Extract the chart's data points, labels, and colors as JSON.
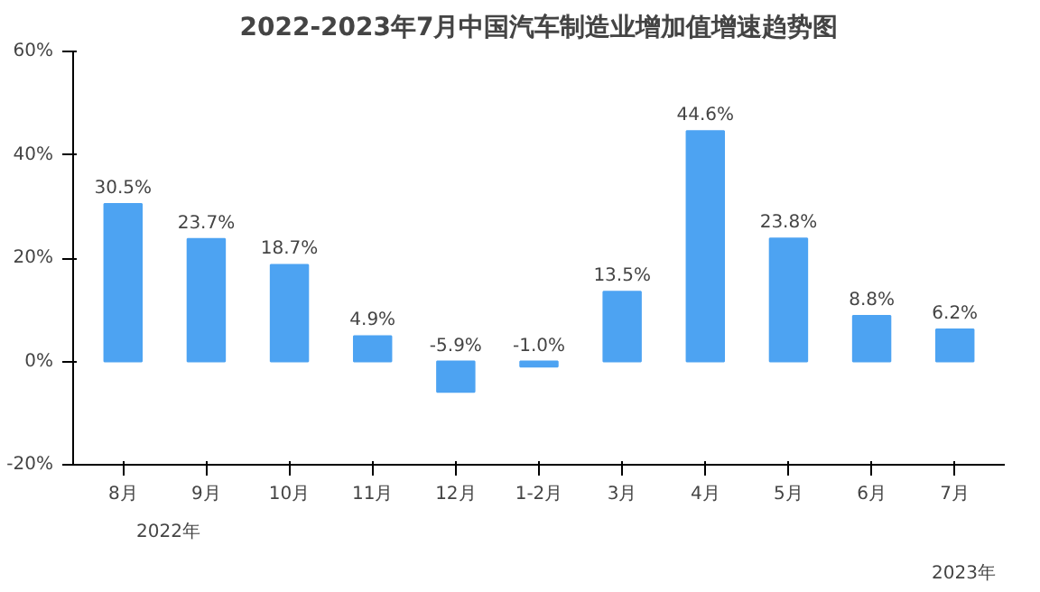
{
  "chart_data": {
    "type": "bar",
    "title": "2022-2023年7月中国汽车制造业增加值增速趋势图",
    "categories": [
      "8月",
      "9月",
      "10月",
      "11月",
      "12月",
      "1-2月",
      "3月",
      "4月",
      "5月",
      "6月",
      "7月"
    ],
    "values": [
      30.5,
      23.7,
      18.7,
      4.9,
      -5.9,
      -1.0,
      13.5,
      44.6,
      23.8,
      8.8,
      6.2
    ],
    "value_labels": [
      "30.5%",
      "23.7%",
      "18.7%",
      "4.9%",
      "-5.9%",
      "-1.0%",
      "13.5%",
      "44.6%",
      "23.8%",
      "8.8%",
      "6.2%"
    ],
    "color": "#4da3f2",
    "ylim": [
      -20,
      60
    ],
    "yticks": [
      {
        "value": -20,
        "label": "-20%"
      },
      {
        "value": 0,
        "label": "0%"
      },
      {
        "value": 20,
        "label": "20%"
      },
      {
        "value": 40,
        "label": "40%"
      },
      {
        "value": 60,
        "label": "60%"
      }
    ],
    "grid": false,
    "annotations": [
      "2022年",
      "2023年"
    ]
  }
}
